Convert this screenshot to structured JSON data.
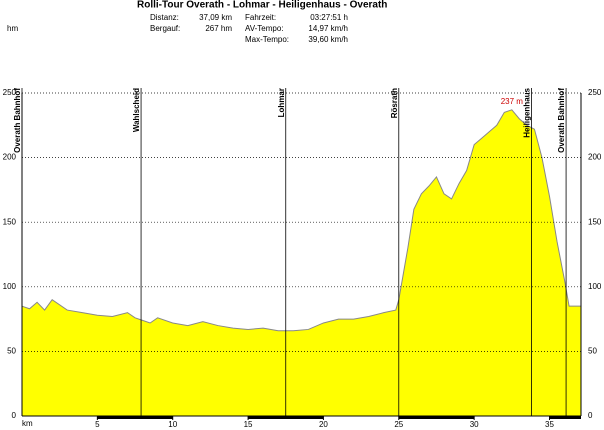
{
  "chart_data": {
    "type": "area",
    "title": "Rolli-Tour Overath - Lohmar - Heiligenhaus - Overath",
    "stats": [
      {
        "label": "Distanz:",
        "value": "37,09 km"
      },
      {
        "label": "Bergauf:",
        "value": "267 hm"
      },
      {
        "label": "Fahrzeit:",
        "value": "03:27:51 h"
      },
      {
        "label": "AV-Tempo:",
        "value": "14,97 km/h"
      },
      {
        "label": "Max-Tempo:",
        "value": "39,60 km/h"
      }
    ],
    "y_label": "hm",
    "x_label": "km",
    "x": [
      0,
      0.5,
      1,
      1.5,
      2,
      3,
      4,
      5,
      6,
      7,
      7.5,
      8,
      8.5,
      9,
      10,
      11,
      12,
      13,
      14,
      15,
      16,
      17,
      18,
      19,
      20,
      21,
      22,
      23,
      24,
      24.8,
      25,
      25.3,
      25.6,
      26,
      26.5,
      27,
      27.5,
      28,
      28.5,
      29,
      29.5,
      30,
      30.5,
      31,
      31.5,
      32,
      32.5,
      33,
      33.5,
      34,
      34.5,
      35,
      35.5,
      36,
      36.3,
      37.09
    ],
    "values": [
      85,
      83,
      88,
      82,
      90,
      82,
      80,
      78,
      77,
      80,
      76,
      74,
      72,
      76,
      72,
      70,
      73,
      70,
      68,
      67,
      68,
      66,
      66,
      67,
      72,
      75,
      75,
      77,
      80,
      82,
      90,
      110,
      130,
      160,
      172,
      178,
      185,
      172,
      168,
      180,
      190,
      210,
      215,
      220,
      225,
      235,
      237,
      230,
      225,
      222,
      200,
      170,
      135,
      105,
      85,
      85
    ],
    "color": "#ffff00",
    "line_color": "#888888",
    "xlim": [
      0,
      37.09
    ],
    "ylim": [
      0,
      250
    ],
    "xticks": [
      5,
      10,
      15,
      20,
      25,
      30,
      35
    ],
    "yticks": [
      0,
      50,
      100,
      150,
      200,
      250
    ],
    "grid": true,
    "waypoints": [
      {
        "label": "Overath Bahnhof",
        "x": 0
      },
      {
        "label": "Wahlscheid",
        "x": 7.9
      },
      {
        "label": "Lohmar",
        "x": 17.5
      },
      {
        "label": "Rösrath",
        "x": 25.0
      },
      {
        "label": "Heiligenhaus",
        "x": 33.8
      },
      {
        "label": "Overath Bahnhof",
        "x": 36.1
      }
    ],
    "annotation": {
      "text": "237 m",
      "x": 32.5,
      "y": 237,
      "color": "#cc0000"
    }
  }
}
